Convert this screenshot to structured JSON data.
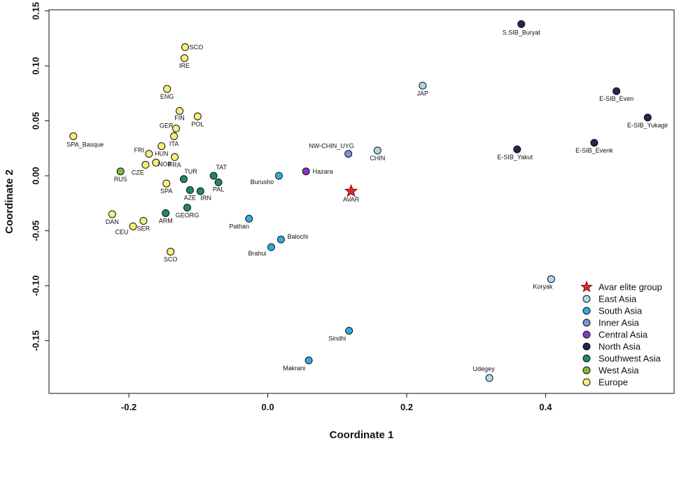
{
  "chart_data": {
    "type": "scatter",
    "xlabel": "Coordinate 1",
    "ylabel": "Coordinate 2",
    "xlim": [
      -0.315,
      0.585
    ],
    "ylim": [
      -0.198,
      0.151
    ],
    "xticks": [
      -0.2,
      0.0,
      0.2,
      0.4
    ],
    "yticks": [
      0.15,
      0.1,
      0.05,
      0.0,
      -0.05,
      -0.1,
      -0.15
    ],
    "grid": false,
    "legend_position": "bottom-right",
    "groups": [
      {
        "name": "Avar elite group",
        "color": "#e8262b",
        "marker": "star"
      },
      {
        "name": "East Asia",
        "color": "#a7dbe9",
        "marker": "circle"
      },
      {
        "name": "South Asia",
        "color": "#2eaee0",
        "marker": "circle"
      },
      {
        "name": "Inner Asia",
        "color": "#7d93d8",
        "marker": "circle"
      },
      {
        "name": "Central Asia",
        "color": "#8e35c7",
        "marker": "circle"
      },
      {
        "name": "North Asia",
        "color": "#1e2a4d",
        "marker": "circle"
      },
      {
        "name": "Southwest Asia",
        "color": "#1c8a62",
        "marker": "circle"
      },
      {
        "name": "West Asia",
        "color": "#86b83b",
        "marker": "circle"
      },
      {
        "name": "Europe",
        "color": "#f8ef7a",
        "marker": "circle"
      }
    ],
    "points": [
      {
        "label": "AVAR",
        "group": "Avar elite group",
        "x": 0.12,
        "y": -0.014
      },
      {
        "label": "JAP",
        "group": "East Asia",
        "x": 0.223,
        "y": 0.082
      },
      {
        "label": "CHIN",
        "group": "East Asia",
        "x": 0.158,
        "y": 0.023
      },
      {
        "label": "Koryak",
        "group": "East Asia",
        "x": 0.408,
        "y": -0.094
      },
      {
        "label": "Udegey",
        "group": "East Asia",
        "x": 0.319,
        "y": -0.184
      },
      {
        "label": "Burusho",
        "group": "South Asia",
        "x": 0.016,
        "y": 0.0
      },
      {
        "label": "Pathan",
        "group": "South Asia",
        "x": -0.027,
        "y": -0.039
      },
      {
        "label": "Balochi",
        "group": "South Asia",
        "x": 0.019,
        "y": -0.058
      },
      {
        "label": "Brahui",
        "group": "South Asia",
        "x": 0.005,
        "y": -0.065
      },
      {
        "label": "Sindhi",
        "group": "South Asia",
        "x": 0.117,
        "y": -0.141
      },
      {
        "label": "Makrani",
        "group": "South Asia",
        "x": 0.059,
        "y": -0.168
      },
      {
        "label": "NW-CHIN_UYG",
        "group": "Inner Asia",
        "x": 0.116,
        "y": 0.02
      },
      {
        "label": "Hazara",
        "group": "Central Asia",
        "x": 0.055,
        "y": 0.004
      },
      {
        "label": "S.SIB_Buryat",
        "group": "North Asia",
        "x": 0.365,
        "y": 0.138
      },
      {
        "label": "E-SIB_Even",
        "group": "North Asia",
        "x": 0.502,
        "y": 0.077
      },
      {
        "label": "E-SIB_Yukagir",
        "group": "North Asia",
        "x": 0.547,
        "y": 0.053
      },
      {
        "label": "E-SIB_Evenk",
        "group": "North Asia",
        "x": 0.47,
        "y": 0.03
      },
      {
        "label": "E-SIB_Yakut",
        "group": "North Asia",
        "x": 0.359,
        "y": 0.024
      },
      {
        "label": "TUR",
        "group": "Southwest Asia",
        "x": -0.121,
        "y": -0.003
      },
      {
        "label": "TAT",
        "group": "Southwest Asia",
        "x": -0.078,
        "y": 0.0
      },
      {
        "label": "PAL",
        "group": "Southwest Asia",
        "x": -0.071,
        "y": -0.006
      },
      {
        "label": "AZE",
        "group": "Southwest Asia",
        "x": -0.112,
        "y": -0.013
      },
      {
        "label": "IRN",
        "group": "Southwest Asia",
        "x": -0.097,
        "y": -0.014
      },
      {
        "label": "ARM",
        "group": "Southwest Asia",
        "x": -0.147,
        "y": -0.034
      },
      {
        "label": "GEORG",
        "group": "Southwest Asia",
        "x": -0.116,
        "y": -0.029
      },
      {
        "label": "RUS",
        "group": "West Asia",
        "x": -0.212,
        "y": 0.004
      },
      {
        "label": "SCO",
        "group": "Europe",
        "x": -0.119,
        "y": 0.117
      },
      {
        "label": "IRE",
        "group": "Europe",
        "x": -0.12,
        "y": 0.107
      },
      {
        "label": "ENG",
        "group": "Europe",
        "x": -0.145,
        "y": 0.079
      },
      {
        "label": "FIN",
        "group": "Europe",
        "x": -0.127,
        "y": 0.059
      },
      {
        "label": "POL",
        "group": "Europe",
        "x": -0.101,
        "y": 0.054
      },
      {
        "label": "GER",
        "group": "Europe",
        "x": -0.132,
        "y": 0.043
      },
      {
        "label": "ITA",
        "group": "Europe",
        "x": -0.135,
        "y": 0.036
      },
      {
        "label": "SPA_Basque",
        "group": "Europe",
        "x": -0.28,
        "y": 0.036
      },
      {
        "label": "FRI",
        "group": "Europe",
        "x": -0.171,
        "y": 0.02
      },
      {
        "label": "HUN",
        "group": "Europe",
        "x": -0.153,
        "y": 0.027
      },
      {
        "label": "FRA",
        "group": "Europe",
        "x": -0.134,
        "y": 0.017
      },
      {
        "label": "CZE",
        "group": "Europe",
        "x": -0.176,
        "y": 0.01
      },
      {
        "label": "NOR",
        "group": "Europe",
        "x": -0.161,
        "y": 0.012
      },
      {
        "label": "SPA",
        "group": "Europe",
        "x": -0.146,
        "y": -0.007
      },
      {
        "label": "DAN",
        "group": "Europe",
        "x": -0.224,
        "y": -0.035
      },
      {
        "label": "CEU",
        "group": "Europe",
        "x": -0.194,
        "y": -0.046
      },
      {
        "label": "SER",
        "group": "Europe",
        "x": -0.179,
        "y": -0.041
      },
      {
        "label": "SCO",
        "group": "Europe",
        "x": -0.14,
        "y": -0.069
      }
    ]
  }
}
